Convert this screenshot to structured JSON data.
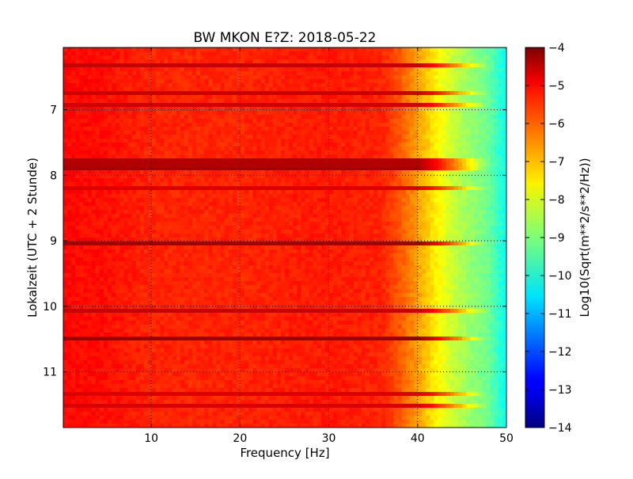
{
  "chart_data": {
    "type": "heatmap",
    "title": "BW MKON E?Z: 2018-05-22",
    "xlabel": "Frequency [Hz]",
    "ylabel": "Lokalzeit (UTC + 2 Stunde)",
    "xlim": [
      0.1,
      50
    ],
    "ylim": [
      11.85,
      6.05
    ],
    "x_ticks": [
      10,
      20,
      30,
      40,
      50
    ],
    "y_ticks": [
      7,
      8,
      9,
      10,
      11
    ],
    "grid": true,
    "colorbar": {
      "label": "Log10(Sqrt(m**2/s**2/Hz))",
      "range": [
        -14,
        -4
      ],
      "ticks": [
        -4,
        -5,
        -6,
        -7,
        -8,
        -9,
        -10,
        -11,
        -12,
        -13,
        -14
      ],
      "colormap": "jet"
    },
    "frequency_profile": {
      "x": [
        0,
        5,
        10,
        20,
        30,
        36,
        38,
        40,
        42,
        44,
        46,
        48,
        50
      ],
      "value": [
        -5.3,
        -5.4,
        -5.6,
        -5.6,
        -5.5,
        -5.6,
        -6.1,
        -6.8,
        -7.6,
        -8.3,
        -8.8,
        -9.2,
        -10.2
      ]
    },
    "horizontal_bands": [
      {
        "time": 6.3,
        "level": -4.7
      },
      {
        "time": 6.75,
        "level": -4.7
      },
      {
        "time": 6.95,
        "level": -4.8
      },
      {
        "time": 7.8,
        "level": -4.5
      },
      {
        "time": 7.9,
        "level": -4.4
      },
      {
        "time": 8.2,
        "level": -4.9
      },
      {
        "time": 9.02,
        "level": -4.3
      },
      {
        "time": 10.08,
        "level": -4.7
      },
      {
        "time": 10.5,
        "level": -4.2
      },
      {
        "time": 11.35,
        "level": -4.9
      },
      {
        "time": 11.5,
        "level": -4.9
      }
    ]
  }
}
